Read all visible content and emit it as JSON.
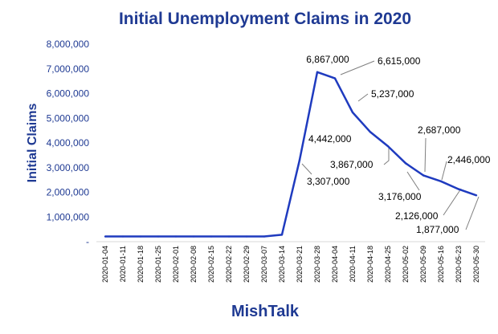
{
  "chart_data": {
    "type": "line",
    "title": "Initial Unemployment Claims in 2020",
    "xlabel": "MishTalk",
    "ylabel": "Initial Claims",
    "ylim": [
      0,
      8000000
    ],
    "y_ticks": [
      "-",
      "1,000,000",
      "2,000,000",
      "3,000,000",
      "4,000,000",
      "5,000,000",
      "6,000,000",
      "7,000,000",
      "8,000,000"
    ],
    "grid": false,
    "legend": "none",
    "series_color": "#1f3bbf",
    "categories": [
      "2020-01-04",
      "2020-01-11",
      "2020-01-18",
      "2020-01-25",
      "2020-02-01",
      "2020-02-08",
      "2020-02-15",
      "2020-02-22",
      "2020-02-29",
      "2020-03-07",
      "2020-03-14",
      "2020-03-21",
      "2020-03-28",
      "2020-04-04",
      "2020-04-11",
      "2020-04-18",
      "2020-04-25",
      "2020-05-02",
      "2020-05-09",
      "2020-05-16",
      "2020-05-23",
      "2020-05-30"
    ],
    "series": [
      {
        "values": [
          210000,
          210000,
          210000,
          210000,
          210000,
          210000,
          210000,
          210000,
          210000,
          210000,
          280000,
          3307000,
          6867000,
          6615000,
          5237000,
          4442000,
          3867000,
          3176000,
          2687000,
          2446000,
          2126000,
          1877000
        ]
      }
    ],
    "data_labels": [
      "3,307,000",
      "6,867,000",
      "6,615,000",
      "5,237,000",
      "4,442,000",
      "3,867,000",
      "3,176,000",
      "2,687,000",
      "2,446,000",
      "2,126,000",
      "1,877,000"
    ]
  }
}
